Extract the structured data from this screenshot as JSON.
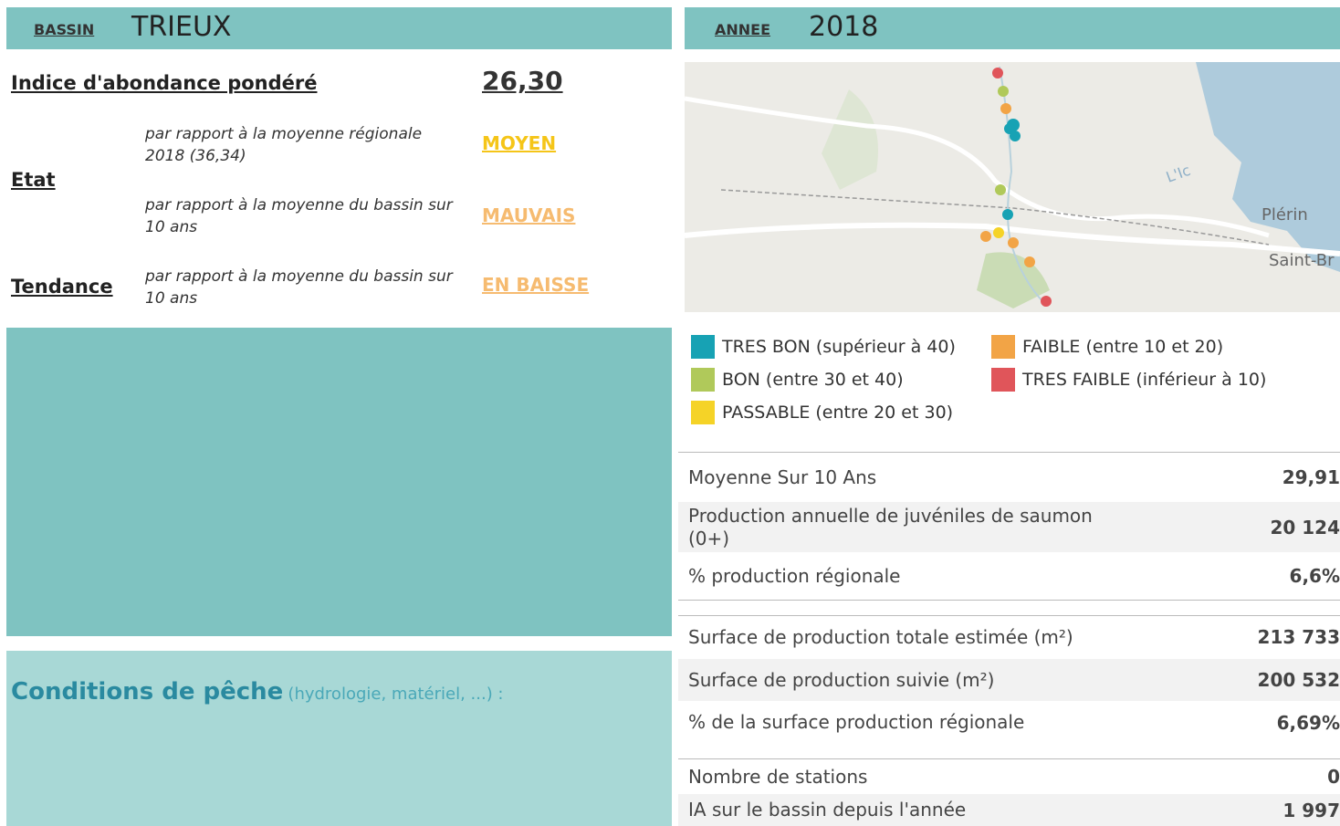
{
  "left_header": {
    "label": "BASSIN",
    "value": "TRIEUX"
  },
  "right_header": {
    "label": "ANNEE",
    "value": "2018"
  },
  "indice": {
    "label": "Indice d'abondance pondéré",
    "value": "26,30"
  },
  "etat": {
    "label": "Etat",
    "rows": [
      {
        "desc": "par rapport à la moyenne régionale 2018 (36,34)",
        "status": "MOYEN"
      },
      {
        "desc": "par rapport à la moyenne du bassin sur 10 ans",
        "status": "MAUVAIS"
      }
    ]
  },
  "tendance": {
    "label": "Tendance",
    "desc": "par rapport à la moyenne du bassin sur 10 ans",
    "status": "EN BAISSE"
  },
  "conditions": {
    "title": "Conditions de pêche",
    "note": "(hydrologie, matériel, ...) :"
  },
  "map": {
    "labels": [
      "L'Ic",
      "Plérin",
      "Saint-Br"
    ]
  },
  "legend": [
    {
      "label": "TRES BON (supérieur à 40)",
      "color": "#17a2b4"
    },
    {
      "label": "BON (entre 30 et 40)",
      "color": "#b0c95a"
    },
    {
      "label": "PASSABLE (entre 20 et 30)",
      "color": "#f5d327"
    },
    {
      "label": "FAIBLE (entre 10 et 20)",
      "color": "#f2a446"
    },
    {
      "label": "TRES FAIBLE  (inférieur à 10)",
      "color": "#e0555a"
    }
  ],
  "stats": [
    [
      {
        "label": "Moyenne Sur 10 Ans",
        "value": "29,91"
      },
      {
        "label": "Production annuelle de juvéniles de saumon (0+)",
        "value": "20 124"
      },
      {
        "label": "% production régionale",
        "value": "6,6%"
      }
    ],
    [
      {
        "label": "Surface de production totale estimée (m²)",
        "value": "213 733"
      },
      {
        "label": "Surface de production suivie (m²)",
        "value": "200 532"
      },
      {
        "label": "% de la surface production régionale",
        "value": "6,69%"
      }
    ],
    [
      {
        "label": "Nombre de stations",
        "value": "0"
      },
      {
        "label": "IA sur le bassin depuis l'année",
        "value": "1 997"
      }
    ]
  ]
}
